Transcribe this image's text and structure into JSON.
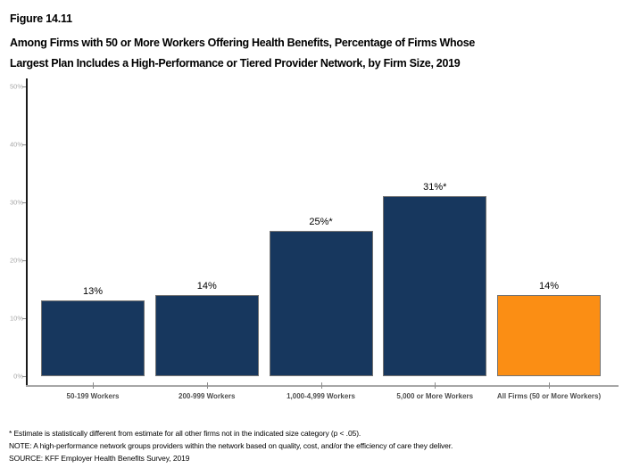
{
  "header": {
    "figure_label": "Figure 14.11",
    "title_line1": "Among Firms with 50 or More Workers Offering Health Benefits, Percentage of Firms Whose",
    "title_line2": "Largest Plan Includes a High-Performance or Tiered Provider Network, by Firm Size, 2019"
  },
  "chart_data": {
    "type": "bar",
    "title": "Among Firms with 50 or More Workers Offering Health Benefits, Percentage of Firms Whose Largest Plan Includes a High-Performance or Tiered Provider Network, by Firm Size, 2019",
    "categories": [
      "50-199 Workers",
      "200-999 Workers",
      "1,000-4,999 Workers",
      "5,000 or More Workers",
      "All Firms (50 or More Workers)"
    ],
    "values": [
      13,
      14,
      25,
      31,
      14
    ],
    "bar_labels": [
      "13%",
      "14%",
      "25%*",
      "31%*",
      "14%"
    ],
    "bar_colors": [
      "#17375E",
      "#17375E",
      "#17375E",
      "#17375E",
      "#FB8E14"
    ],
    "y_ticks": [
      "0%",
      "10%",
      "20%",
      "30%",
      "40%",
      "50%"
    ],
    "xlabel": "",
    "ylabel": "",
    "ylim": [
      0,
      50
    ],
    "grid": false,
    "legend": false
  },
  "colors": {
    "navy": "#17375E",
    "orange": "#FB8E14",
    "axis_line": "#A6A6A6",
    "y_axis_line": "#1A1A1A",
    "tick_label": "#A8A8A8",
    "category_label": "#4D4D4D",
    "bar_border": "#737373"
  },
  "footnotes": [
    "* Estimate is statistically different from estimate for all other firms not in the indicated size category (p < .05).",
    "NOTE: A high-performance network groups providers within the network based on quality, cost, and/or the efficiency of care they deliver.",
    "SOURCE: KFF Employer Health Benefits Survey, 2019"
  ]
}
